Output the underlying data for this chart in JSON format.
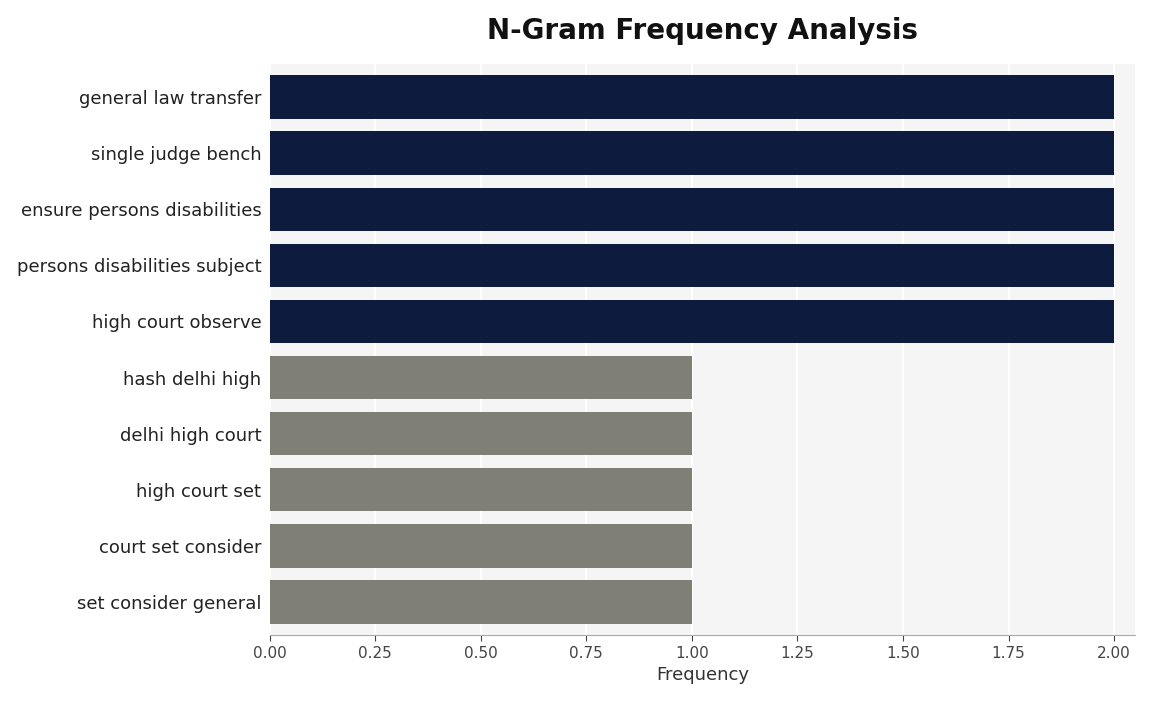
{
  "title": "N-Gram Frequency Analysis",
  "xlabel": "Frequency",
  "categories": [
    "set consider general",
    "court set consider",
    "high court set",
    "delhi high court",
    "hash delhi high",
    "high court observe",
    "persons disabilities subject",
    "ensure persons disabilities",
    "single judge bench",
    "general law transfer"
  ],
  "values": [
    1,
    1,
    1,
    1,
    1,
    2,
    2,
    2,
    2,
    2
  ],
  "colors": [
    "#7f7f75",
    "#7f7f75",
    "#7f7f75",
    "#7f7f75",
    "#7f7f75",
    "#0d1b3e",
    "#0d1b3e",
    "#0d1b3e",
    "#0d1b3e",
    "#0d1b3e"
  ],
  "xlim": [
    0,
    2.05
  ],
  "xticks": [
    0.0,
    0.25,
    0.5,
    0.75,
    1.0,
    1.25,
    1.5,
    1.75,
    2.0
  ],
  "plot_background_color": "#f5f5f5",
  "fig_background_color": "#ffffff",
  "title_fontsize": 20,
  "label_fontsize": 13,
  "tick_fontsize": 11,
  "bar_height": 0.78
}
